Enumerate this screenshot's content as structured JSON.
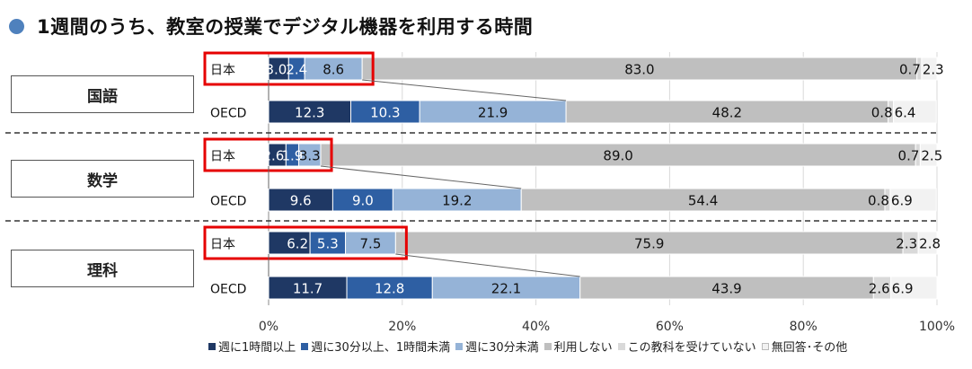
{
  "title": "1週間のうち、教室の授業でデジタル機器を利用する時間",
  "colors": {
    "dot": "#4f81bd",
    "series": [
      "#1f3864",
      "#2e5fa3",
      "#95b3d7",
      "#bfbfbf",
      "#d9d9d9",
      "#f2f2f2"
    ],
    "highlight": "#e60000"
  },
  "chart_data": {
    "type": "bar",
    "orientation": "horizontal",
    "stacked": true,
    "xlim": [
      0,
      100
    ],
    "x_ticks": [
      "0%",
      "20%",
      "40%",
      "60%",
      "80%",
      "100%"
    ],
    "grid": true,
    "legend_position": "bottom",
    "series_names": [
      "週に1時間以上",
      "週に30分以上、1時間未満",
      "週に30分未満",
      "利用しない",
      "この教科を受けていない",
      "無回答･その他"
    ],
    "groups": [
      {
        "subject": "国語",
        "rows": [
          {
            "label": "日本",
            "values": [
              3.0,
              2.4,
              8.6,
              83.0,
              0.7,
              2.3
            ],
            "labels": [
              "3.0",
              "2.4",
              "8.6",
              "83.0",
              "0.7",
              "2.3"
            ],
            "highlight": true
          },
          {
            "label": "OECD",
            "values": [
              12.3,
              10.3,
              21.9,
              48.2,
              0.8,
              6.4
            ],
            "labels": [
              "12.3",
              "10.3",
              "21.9",
              "48.2",
              "0.8",
              "6.4"
            ],
            "highlight": false
          }
        ]
      },
      {
        "subject": "数学",
        "rows": [
          {
            "label": "日本",
            "values": [
              2.6,
              1.9,
              3.3,
              89.0,
              0.7,
              2.5
            ],
            "labels": [
              "2.6",
              "1.9",
              "3.3",
              "89.0",
              "0.7",
              "2.5"
            ],
            "highlight": true
          },
          {
            "label": "OECD",
            "values": [
              9.6,
              9.0,
              19.2,
              54.4,
              0.8,
              6.9
            ],
            "labels": [
              "9.6",
              "9.0",
              "19.2",
              "54.4",
              "0.8",
              "6.9"
            ],
            "highlight": false
          }
        ]
      },
      {
        "subject": "理科",
        "rows": [
          {
            "label": "日本",
            "values": [
              6.2,
              5.3,
              7.5,
              75.9,
              2.3,
              2.8
            ],
            "labels": [
              "6.2",
              "5.3",
              "7.5",
              "75.9",
              "2.3",
              "2.8"
            ],
            "highlight": true
          },
          {
            "label": "OECD",
            "values": [
              11.7,
              12.8,
              22.1,
              43.9,
              2.6,
              6.9
            ],
            "labels": [
              "11.7",
              "12.8",
              "22.1",
              "43.9",
              "2.6",
              "6.9"
            ],
            "highlight": false
          }
        ]
      }
    ]
  }
}
